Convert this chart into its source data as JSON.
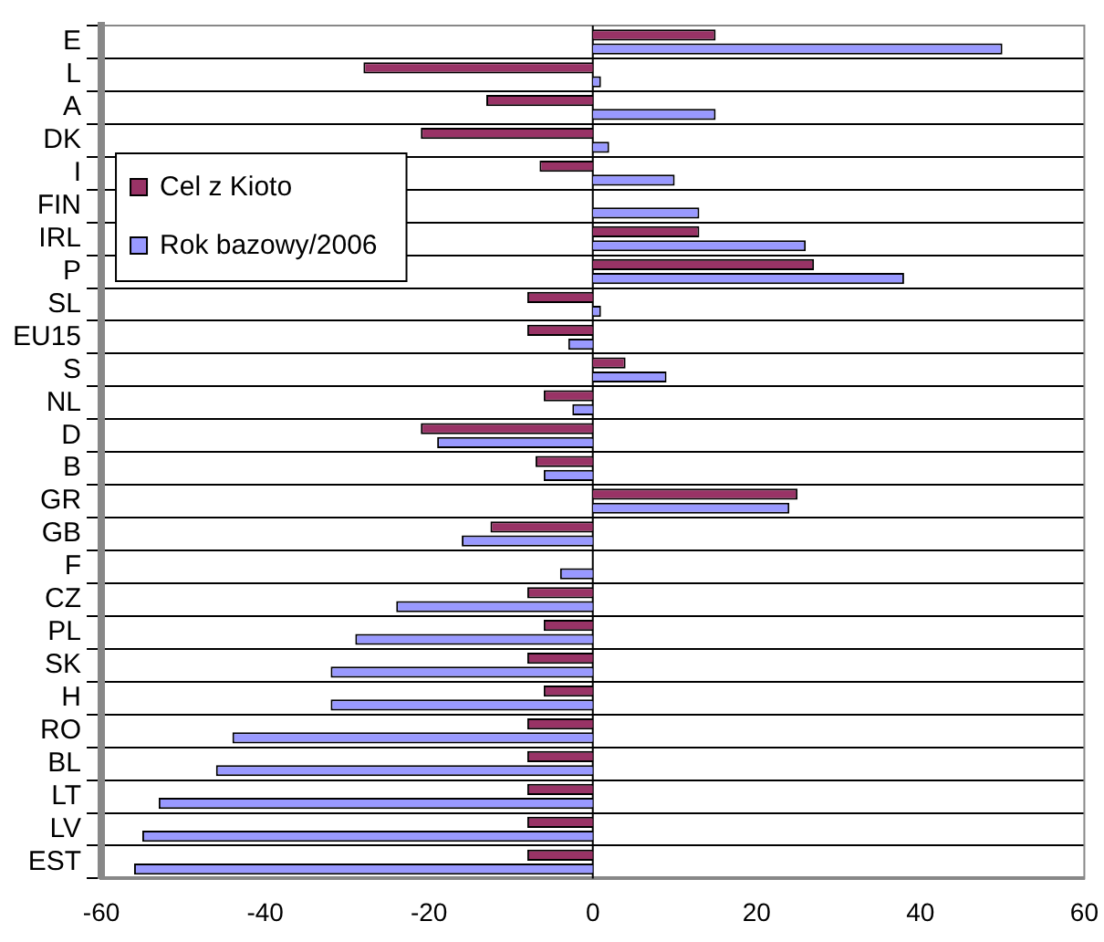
{
  "chart_data": {
    "type": "bar",
    "orientation": "horizontal",
    "categories": [
      "E",
      "L",
      "A",
      "DK",
      "I",
      "FIN",
      "IRL",
      "P",
      "SL",
      "EU15",
      "S",
      "NL",
      "D",
      "B",
      "GR",
      "GB",
      "F",
      "CZ",
      "PL",
      "SK",
      "H",
      "RO",
      "BL",
      "LT",
      "LV",
      "EST"
    ],
    "series": [
      {
        "name": "Cel z Kioto",
        "color": "#993366",
        "values": [
          15,
          -28,
          -13,
          -21,
          -6.5,
          0,
          13,
          27,
          -8,
          -8,
          4,
          -6,
          -21,
          -7,
          25,
          -12.5,
          0,
          -8,
          -6,
          -8,
          -6,
          -8,
          -8,
          -8,
          -8,
          -8
        ]
      },
      {
        "name": "Rok bazowy/2006",
        "color": "#9999ff",
        "values": [
          50,
          1,
          15,
          2,
          10,
          13,
          26,
          38,
          1,
          -3,
          9,
          -2.5,
          -19,
          -6,
          24,
          -16,
          -4,
          -24,
          -29,
          -32,
          -32,
          -44,
          -46,
          -53,
          -55,
          -56
        ]
      }
    ],
    "xlim": [
      -60,
      60
    ],
    "xticks": [
      -60,
      -40,
      -20,
      0,
      20,
      40,
      60
    ],
    "grid": "y",
    "ref_lines": [
      {
        "axis": "x",
        "value": 0,
        "color": "#000000"
      }
    ],
    "legend": "top left"
  }
}
